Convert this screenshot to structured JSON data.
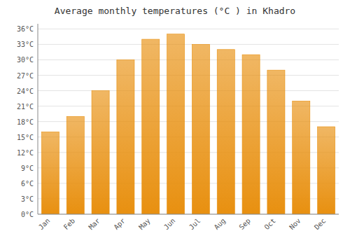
{
  "chart_data": {
    "type": "bar",
    "title": "Average monthly temperatures (°C ) in Khadro",
    "categories": [
      "Jan",
      "Feb",
      "Mar",
      "Apr",
      "May",
      "Jun",
      "Jul",
      "Aug",
      "Sep",
      "Oct",
      "Nov",
      "Dec"
    ],
    "values": [
      16,
      19,
      24,
      30,
      34,
      35,
      33,
      32,
      31,
      28,
      22,
      17
    ],
    "color": "#E89010",
    "ylim": [
      0,
      37
    ],
    "yticks": [
      {
        "value": 0,
        "label": "0°C"
      },
      {
        "value": 3,
        "label": "3°C"
      },
      {
        "value": 6,
        "label": "6°C"
      },
      {
        "value": 9,
        "label": "9°C"
      },
      {
        "value": 12,
        "label": "12°C"
      },
      {
        "value": 15,
        "label": "15°C"
      },
      {
        "value": 18,
        "label": "18°C"
      },
      {
        "value": 21,
        "label": "21°C"
      },
      {
        "value": 24,
        "label": "24°C"
      },
      {
        "value": 27,
        "label": "27°C"
      },
      {
        "value": 30,
        "label": "30°C"
      },
      {
        "value": 33,
        "label": "33°C"
      },
      {
        "value": 36,
        "label": "36°C"
      }
    ],
    "grid": true
  }
}
